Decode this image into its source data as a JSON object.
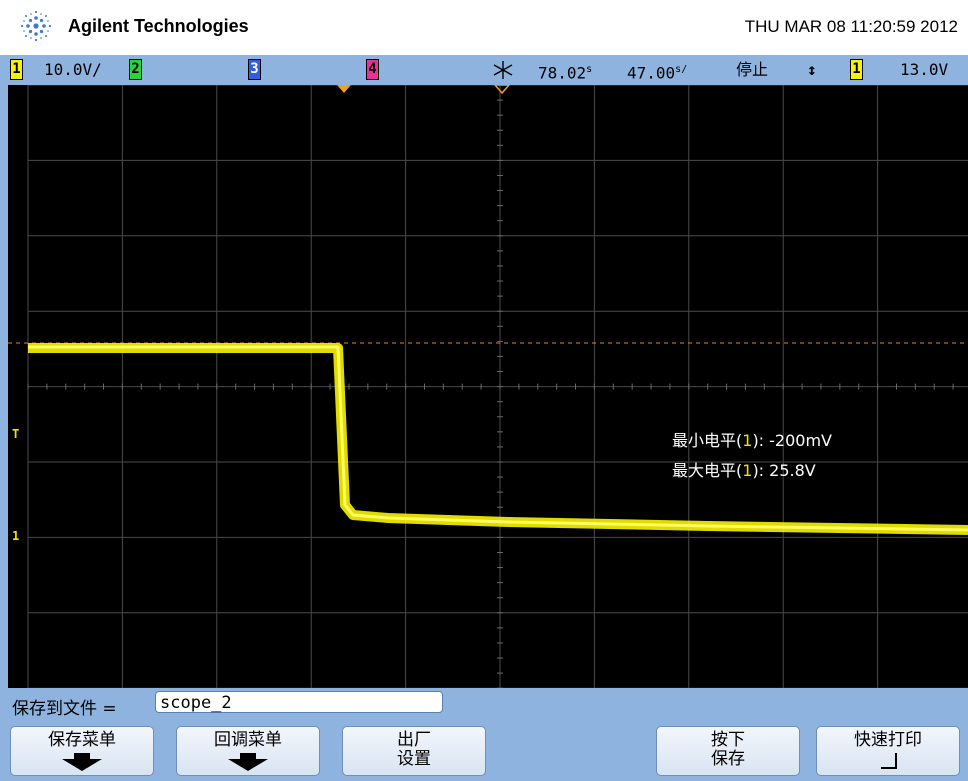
{
  "header": {
    "brand": "Agilent Technologies",
    "datetime": "THU MAR 08 11:20:59 2012"
  },
  "status": {
    "ch1_badge": "1",
    "ch1_scale": "10.0V/",
    "ch2_badge": "2",
    "ch3_badge": "3",
    "ch4_badge": "4",
    "time_delay": "78.02",
    "time_delay_unit": "s",
    "time_scale": "47.00",
    "time_scale_unit": "s/",
    "run_state": "停止",
    "trigger_slope": "↕",
    "trigger_ch_badge": "1",
    "trigger_level": "13.0V"
  },
  "measurements": {
    "min": {
      "label": "最小电平(",
      "channel": "1",
      "suffix": "): -200mV"
    },
    "max": {
      "label": "最大电平(",
      "channel": "1",
      "suffix": "): 25.8V"
    }
  },
  "markers": {
    "trigger": "T",
    "ground": "1"
  },
  "bottom": {
    "save_to_file_label": "保存到文件 =",
    "file_name": "scope_2",
    "softkeys": [
      {
        "line1": "保存菜单",
        "line2": ""
      },
      {
        "line1": "回调菜单",
        "line2": ""
      },
      {
        "line1": "出厂",
        "line2": "设置"
      },
      {
        "line1": "按下",
        "line2": "保存"
      },
      {
        "line1": "快速打印",
        "line2": ""
      }
    ]
  },
  "colors": {
    "trace": "#f8f400",
    "grid": "#555555",
    "status_bg": "#8fb3df",
    "ref_line": "#e08a2a"
  }
}
